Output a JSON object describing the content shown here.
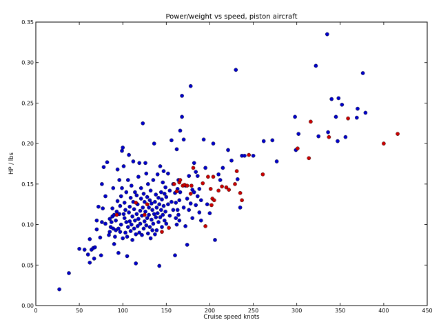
{
  "chart_data": {
    "type": "scatter",
    "title": "Power/weight vs speed, piston aircraft",
    "xlabel": "Cruise speed knots",
    "ylabel": "HP / lbs",
    "xlim": [
      0,
      450
    ],
    "ylim": [
      0.0,
      0.35
    ],
    "xticks": [
      0,
      50,
      100,
      150,
      200,
      250,
      300,
      350,
      400,
      450
    ],
    "yticks": [
      0.0,
      0.05,
      0.1,
      0.15,
      0.2,
      0.25,
      0.3,
      0.35
    ],
    "xtick_labels": [
      "0",
      "50",
      "100",
      "150",
      "200",
      "250",
      "300",
      "350",
      "400",
      "450"
    ],
    "ytick_labels": [
      "0.00",
      "0.05",
      "0.10",
      "0.15",
      "0.20",
      "0.25",
      "0.30",
      "0.35"
    ],
    "grid": false,
    "series": [
      {
        "color": "#0000cc",
        "points": [
          [
            27,
            0.02
          ],
          [
            38,
            0.04
          ],
          [
            50,
            0.07
          ],
          [
            56,
            0.069
          ],
          [
            60,
            0.063
          ],
          [
            62,
            0.053
          ],
          [
            62,
            0.082
          ],
          [
            64,
            0.069
          ],
          [
            66,
            0.071
          ],
          [
            67,
            0.058
          ],
          [
            68,
            0.072
          ],
          [
            70,
            0.094
          ],
          [
            70,
            0.105
          ],
          [
            72,
            0.122
          ],
          [
            74,
            0.084
          ],
          [
            75,
            0.062
          ],
          [
            76,
            0.103
          ],
          [
            76,
            0.15
          ],
          [
            77,
            0.12
          ],
          [
            78,
            0.171
          ],
          [
            80,
            0.101
          ],
          [
            80,
            0.135
          ],
          [
            82,
            0.177
          ],
          [
            84,
            0.087
          ],
          [
            85,
            0.107
          ],
          [
            85,
            0.091
          ],
          [
            86,
            0.097
          ],
          [
            87,
            0.103
          ],
          [
            88,
            0.11
          ],
          [
            88,
            0.12
          ],
          [
            89,
            0.095
          ],
          [
            89,
            0.145
          ],
          [
            90,
            0.076
          ],
          [
            90,
            0.112
          ],
          [
            91,
            0.085
          ],
          [
            92,
            0.105
          ],
          [
            92,
            0.093
          ],
          [
            93,
            0.116
          ],
          [
            94,
            0.129
          ],
          [
            94,
            0.168
          ],
          [
            95,
            0.065
          ],
          [
            95,
            0.095
          ],
          [
            96,
            0.113
          ],
          [
            96,
            0.155
          ],
          [
            97,
            0.123
          ],
          [
            97,
            0.091
          ],
          [
            98,
            0.135
          ],
          [
            98,
            0.1
          ],
          [
            99,
            0.191
          ],
          [
            99,
            0.145
          ],
          [
            100,
            0.195
          ],
          [
            100,
            0.083
          ],
          [
            101,
            0.113
          ],
          [
            101,
            0.172
          ],
          [
            102,
            0.108
          ],
          [
            102,
            0.127
          ],
          [
            103,
            0.09
          ],
          [
            103,
            0.118
          ],
          [
            104,
            0.103
          ],
          [
            104,
            0.14
          ],
          [
            105,
            0.061
          ],
          [
            105,
            0.085
          ],
          [
            106,
            0.155
          ],
          [
            106,
            0.097
          ],
          [
            107,
            0.115
          ],
          [
            107,
            0.186
          ],
          [
            108,
            0.122
          ],
          [
            108,
            0.104
          ],
          [
            109,
            0.133
          ],
          [
            109,
            0.092
          ],
          [
            110,
            0.1
          ],
          [
            110,
            0.148
          ],
          [
            111,
            0.081
          ],
          [
            111,
            0.11
          ],
          [
            112,
            0.128
          ],
          [
            112,
            0.178
          ],
          [
            113,
            0.095
          ],
          [
            113,
            0.119
          ],
          [
            114,
            0.14
          ],
          [
            114,
            0.105
          ],
          [
            115,
            0.052
          ],
          [
            115,
            0.088
          ],
          [
            116,
            0.136
          ],
          [
            116,
            0.113
          ],
          [
            117,
            0.098
          ],
          [
            117,
            0.125
          ],
          [
            118,
            0.107
          ],
          [
            118,
            0.159
          ],
          [
            119,
            0.176
          ],
          [
            119,
            0.09
          ],
          [
            120,
            0.117
          ],
          [
            120,
            0.101
          ],
          [
            121,
            0.132
          ],
          [
            121,
            0.145
          ],
          [
            122,
            0.087
          ],
          [
            122,
            0.111
          ],
          [
            123,
            0.225
          ],
          [
            123,
            0.121
          ],
          [
            124,
            0.095
          ],
          [
            124,
            0.138
          ],
          [
            125,
            0.128
          ],
          [
            125,
            0.104
          ],
          [
            126,
            0.176
          ],
          [
            126,
            0.116
          ],
          [
            127,
            0.163
          ],
          [
            127,
            0.099
          ],
          [
            128,
            0.134
          ],
          [
            128,
            0.108
          ],
          [
            129,
            0.15
          ],
          [
            129,
            0.089
          ],
          [
            130,
            0.121
          ],
          [
            130,
            0.112
          ],
          [
            131,
            0.13
          ],
          [
            131,
            0.097
          ],
          [
            132,
            0.083
          ],
          [
            132,
            0.142
          ],
          [
            133,
            0.126
          ],
          [
            133,
            0.106
          ],
          [
            134,
            0.118
          ],
          [
            134,
            0.093
          ],
          [
            135,
            0.155
          ],
          [
            135,
            0.101
          ],
          [
            136,
            0.2
          ],
          [
            136,
            0.113
          ],
          [
            137,
            0.128
          ],
          [
            137,
            0.088
          ],
          [
            138,
            0.109
          ],
          [
            138,
            0.137
          ],
          [
            139,
            0.093
          ],
          [
            139,
            0.121
          ],
          [
            140,
            0.162
          ],
          [
            140,
            0.114
          ],
          [
            141,
            0.133
          ],
          [
            141,
            0.103
          ],
          [
            142,
            0.049
          ],
          [
            142,
            0.125
          ],
          [
            143,
            0.172
          ],
          [
            143,
            0.109
          ],
          [
            144,
            0.14
          ],
          [
            144,
            0.118
          ],
          [
            145,
            0.097
          ],
          [
            145,
            0.131
          ],
          [
            146,
            0.152
          ],
          [
            146,
            0.112
          ],
          [
            147,
            0.166
          ],
          [
            147,
            0.123
          ],
          [
            148,
            0.138
          ],
          [
            148,
            0.105
          ],
          [
            149,
            0.146
          ],
          [
            149,
            0.116
          ],
          [
            150,
            0.101
          ],
          [
            150,
            0.134
          ],
          [
            152,
            0.163
          ],
          [
            152,
            0.125
          ],
          [
            154,
            0.111
          ],
          [
            154,
            0.142
          ],
          [
            156,
            0.204
          ],
          [
            156,
            0.128
          ],
          [
            158,
            0.118
          ],
          [
            158,
            0.15
          ],
          [
            160,
            0.139
          ],
          [
            160,
            0.062
          ],
          [
            161,
            0.108
          ],
          [
            161,
            0.127
          ],
          [
            162,
            0.193
          ],
          [
            162,
            0.1
          ],
          [
            163,
            0.144
          ],
          [
            163,
            0.118
          ],
          [
            164,
            0.155
          ],
          [
            164,
            0.112
          ],
          [
            165,
            0.13
          ],
          [
            165,
            0.105
          ],
          [
            166,
            0.216
          ],
          [
            166,
            0.14
          ],
          [
            168,
            0.259
          ],
          [
            168,
            0.233
          ],
          [
            170,
            0.205
          ],
          [
            170,
            0.121
          ],
          [
            172,
            0.148
          ],
          [
            172,
            0.098
          ],
          [
            174,
            0.132
          ],
          [
            174,
            0.075
          ],
          [
            176,
            0.16
          ],
          [
            176,
            0.118
          ],
          [
            178,
            0.271
          ],
          [
            178,
            0.126
          ],
          [
            180,
            0.143
          ],
          [
            180,
            0.108
          ],
          [
            182,
            0.176
          ],
          [
            182,
            0.14
          ],
          [
            184,
            0.124
          ],
          [
            184,
            0.165
          ],
          [
            186,
            0.16
          ],
          [
            186,
            0.135
          ],
          [
            188,
            0.144
          ],
          [
            188,
            0.115
          ],
          [
            190,
            0.13
          ],
          [
            190,
            0.105
          ],
          [
            193,
            0.205
          ],
          [
            195,
            0.17
          ],
          [
            197,
            0.125
          ],
          [
            200,
            0.114
          ],
          [
            204,
            0.2
          ],
          [
            206,
            0.081
          ],
          [
            210,
            0.162
          ],
          [
            212,
            0.155
          ],
          [
            215,
            0.17
          ],
          [
            221,
            0.192
          ],
          [
            225,
            0.179
          ],
          [
            230,
            0.291
          ],
          [
            232,
            0.156
          ],
          [
            235,
            0.121
          ],
          [
            237,
            0.185
          ],
          [
            240,
            0.185
          ],
          [
            250,
            0.185
          ],
          [
            262,
            0.203
          ],
          [
            272,
            0.204
          ],
          [
            277,
            0.178
          ],
          [
            298,
            0.233
          ],
          [
            299,
            0.192
          ],
          [
            302,
            0.212
          ],
          [
            322,
            0.296
          ],
          [
            325,
            0.209
          ],
          [
            335,
            0.335
          ],
          [
            336,
            0.214
          ],
          [
            340,
            0.255
          ],
          [
            345,
            0.233
          ],
          [
            347,
            0.203
          ],
          [
            348,
            0.256
          ],
          [
            352,
            0.248
          ],
          [
            356,
            0.208
          ],
          [
            369,
            0.232
          ],
          [
            370,
            0.243
          ],
          [
            376,
            0.287
          ],
          [
            379,
            0.238
          ]
        ]
      },
      {
        "color": "#cc0000",
        "points": [
          [
            93,
            0.112
          ],
          [
            115,
            0.127
          ],
          [
            125,
            0.112
          ],
          [
            128,
            0.125
          ],
          [
            145,
            0.091
          ],
          [
            153,
            0.096
          ],
          [
            159,
            0.15
          ],
          [
            162,
            0.141
          ],
          [
            165,
            0.152
          ],
          [
            166,
            0.155
          ],
          [
            169,
            0.148
          ],
          [
            171,
            0.149
          ],
          [
            174,
            0.148
          ],
          [
            178,
            0.138
          ],
          [
            179,
            0.148
          ],
          [
            181,
            0.17
          ],
          [
            192,
            0.151
          ],
          [
            195,
            0.098
          ],
          [
            198,
            0.159
          ],
          [
            201,
            0.144
          ],
          [
            202,
            0.124
          ],
          [
            203,
            0.132
          ],
          [
            204,
            0.159
          ],
          [
            205,
            0.13
          ],
          [
            210,
            0.142
          ],
          [
            214,
            0.147
          ],
          [
            219,
            0.146
          ],
          [
            222,
            0.143
          ],
          [
            229,
            0.15
          ],
          [
            231,
            0.166
          ],
          [
            235,
            0.139
          ],
          [
            237,
            0.13
          ],
          [
            245,
            0.186
          ],
          [
            261,
            0.162
          ],
          [
            301,
            0.194
          ],
          [
            314,
            0.182
          ],
          [
            316,
            0.227
          ],
          [
            337,
            0.208
          ],
          [
            359,
            0.231
          ],
          [
            400,
            0.2
          ],
          [
            416,
            0.212
          ]
        ]
      }
    ]
  }
}
